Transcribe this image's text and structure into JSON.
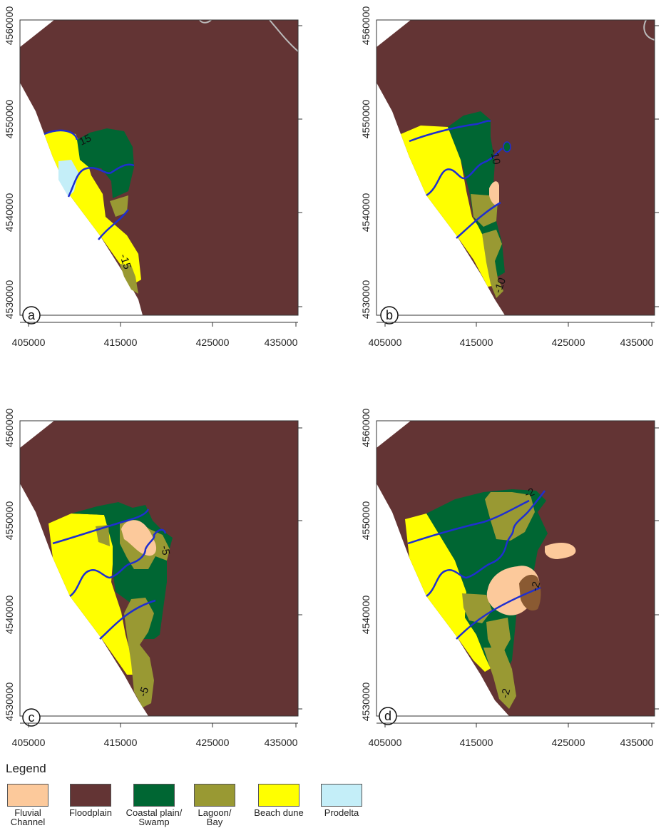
{
  "panels": [
    {
      "letter": "a",
      "contours": [
        "15",
        "-15"
      ]
    },
    {
      "letter": "b",
      "contours": [
        "-10",
        "-10"
      ]
    },
    {
      "letter": "c",
      "contours": [
        "-5",
        "-5"
      ]
    },
    {
      "letter": "d",
      "contours": [
        "-2",
        "-2",
        "-2"
      ]
    }
  ],
  "axes": {
    "x_ticks": [
      "405000",
      "415000",
      "425000",
      "435000"
    ],
    "y_ticks": [
      "4560000",
      "4550000",
      "4540000",
      "4530000"
    ]
  },
  "legend": {
    "title": "Legend",
    "items": [
      {
        "label": "Fluvial\nChannel",
        "color": "#fcc99b"
      },
      {
        "label": "Floodplain",
        "color": "#633434"
      },
      {
        "label": "Coastal plain/\nSwamp",
        "color": "#006633"
      },
      {
        "label": "Lagoon/\nBay",
        "color": "#999933"
      },
      {
        "label": "Beach dune",
        "color": "#ffff00"
      },
      {
        "label": "Prodelta",
        "color": "#c4eef8"
      }
    ]
  },
  "colors": {
    "floodplain": "#633434",
    "swamp": "#006633",
    "lagoon": "#999933",
    "beach": "#ffff00",
    "fluvial": "#fcc99b",
    "prodelta": "#c4eef8",
    "dark_fluvial": "#8a5a32",
    "contour_line": "#1f2fd0"
  }
}
